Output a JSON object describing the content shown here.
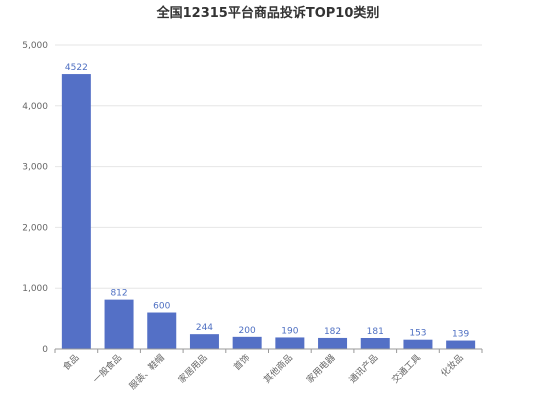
{
  "chart_data": {
    "type": "bar",
    "title": "全国12315平台商品投诉TOP10类别",
    "categories": [
      "食品",
      "一般食品",
      "服装、鞋帽",
      "家居用品",
      "首饰",
      "其他商品",
      "家用电器",
      "通讯产品",
      "交通工具",
      "化妆品"
    ],
    "values": [
      4522,
      812,
      600,
      244,
      200,
      190,
      182,
      181,
      153,
      139
    ],
    "ylim": [
      0,
      5000
    ],
    "yticks": [
      0,
      1000,
      2000,
      3000,
      4000,
      5000
    ],
    "ytick_labels": [
      "0",
      "1,000",
      "2,000",
      "3,000",
      "4,000",
      "5,000"
    ],
    "xlabel": "",
    "ylabel": "",
    "grid": true,
    "bar_color": "#5470c6",
    "label_color": "#4e6fc2"
  }
}
